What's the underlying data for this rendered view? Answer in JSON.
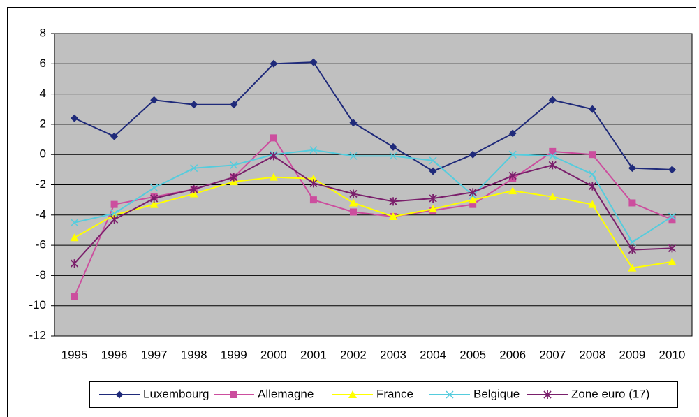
{
  "chart_data": {
    "type": "line",
    "categories": [
      "1995",
      "1996",
      "1997",
      "1998",
      "1999",
      "2000",
      "2001",
      "2002",
      "2003",
      "2004",
      "2005",
      "2006",
      "2007",
      "2008",
      "2009",
      "2010"
    ],
    "series": [
      {
        "name": "Luxembourg",
        "color": "#1f2a7a",
        "marker": "diamond",
        "values": [
          2.4,
          1.2,
          3.6,
          3.3,
          3.3,
          6.0,
          6.1,
          2.1,
          0.5,
          -1.1,
          0.0,
          1.4,
          3.6,
          3.0,
          -0.9,
          -1.0
        ]
      },
      {
        "name": "Allemagne",
        "color": "#cc4e9e",
        "marker": "square",
        "values": [
          -9.4,
          -3.3,
          -2.8,
          -2.3,
          -1.5,
          1.1,
          -3.0,
          -3.8,
          -4.1,
          -3.7,
          -3.3,
          -1.6,
          0.2,
          0.0,
          -3.2,
          -4.3
        ]
      },
      {
        "name": "France",
        "color": "#ffff00",
        "marker": "triangle",
        "values": [
          -5.5,
          -4.0,
          -3.3,
          -2.6,
          -1.8,
          -1.5,
          -1.6,
          -3.2,
          -4.1,
          -3.6,
          -3.0,
          -2.4,
          -2.8,
          -3.3,
          -7.5,
          -7.1
        ]
      },
      {
        "name": "Belgique",
        "color": "#55ccdd",
        "marker": "x",
        "values": [
          -4.5,
          -3.9,
          -2.2,
          -0.9,
          -0.7,
          0.0,
          0.3,
          -0.1,
          -0.1,
          -0.4,
          -2.7,
          0.0,
          -0.1,
          -1.3,
          -5.8,
          -4.1
        ]
      },
      {
        "name": "Zone euro (17)",
        "color": "#7a1f6b",
        "marker": "star",
        "values": [
          -7.2,
          -4.3,
          -2.9,
          -2.3,
          -1.5,
          -0.1,
          -1.9,
          -2.6,
          -3.1,
          -2.9,
          -2.5,
          -1.4,
          -0.7,
          -2.1,
          -6.3,
          -6.2
        ]
      }
    ],
    "ylim": [
      -12,
      8
    ],
    "yticks": [
      -12,
      -10,
      -8,
      -6,
      -4,
      -2,
      0,
      2,
      4,
      6,
      8
    ],
    "grid": true,
    "legend": "bottom",
    "background": "#c0c0c0"
  }
}
